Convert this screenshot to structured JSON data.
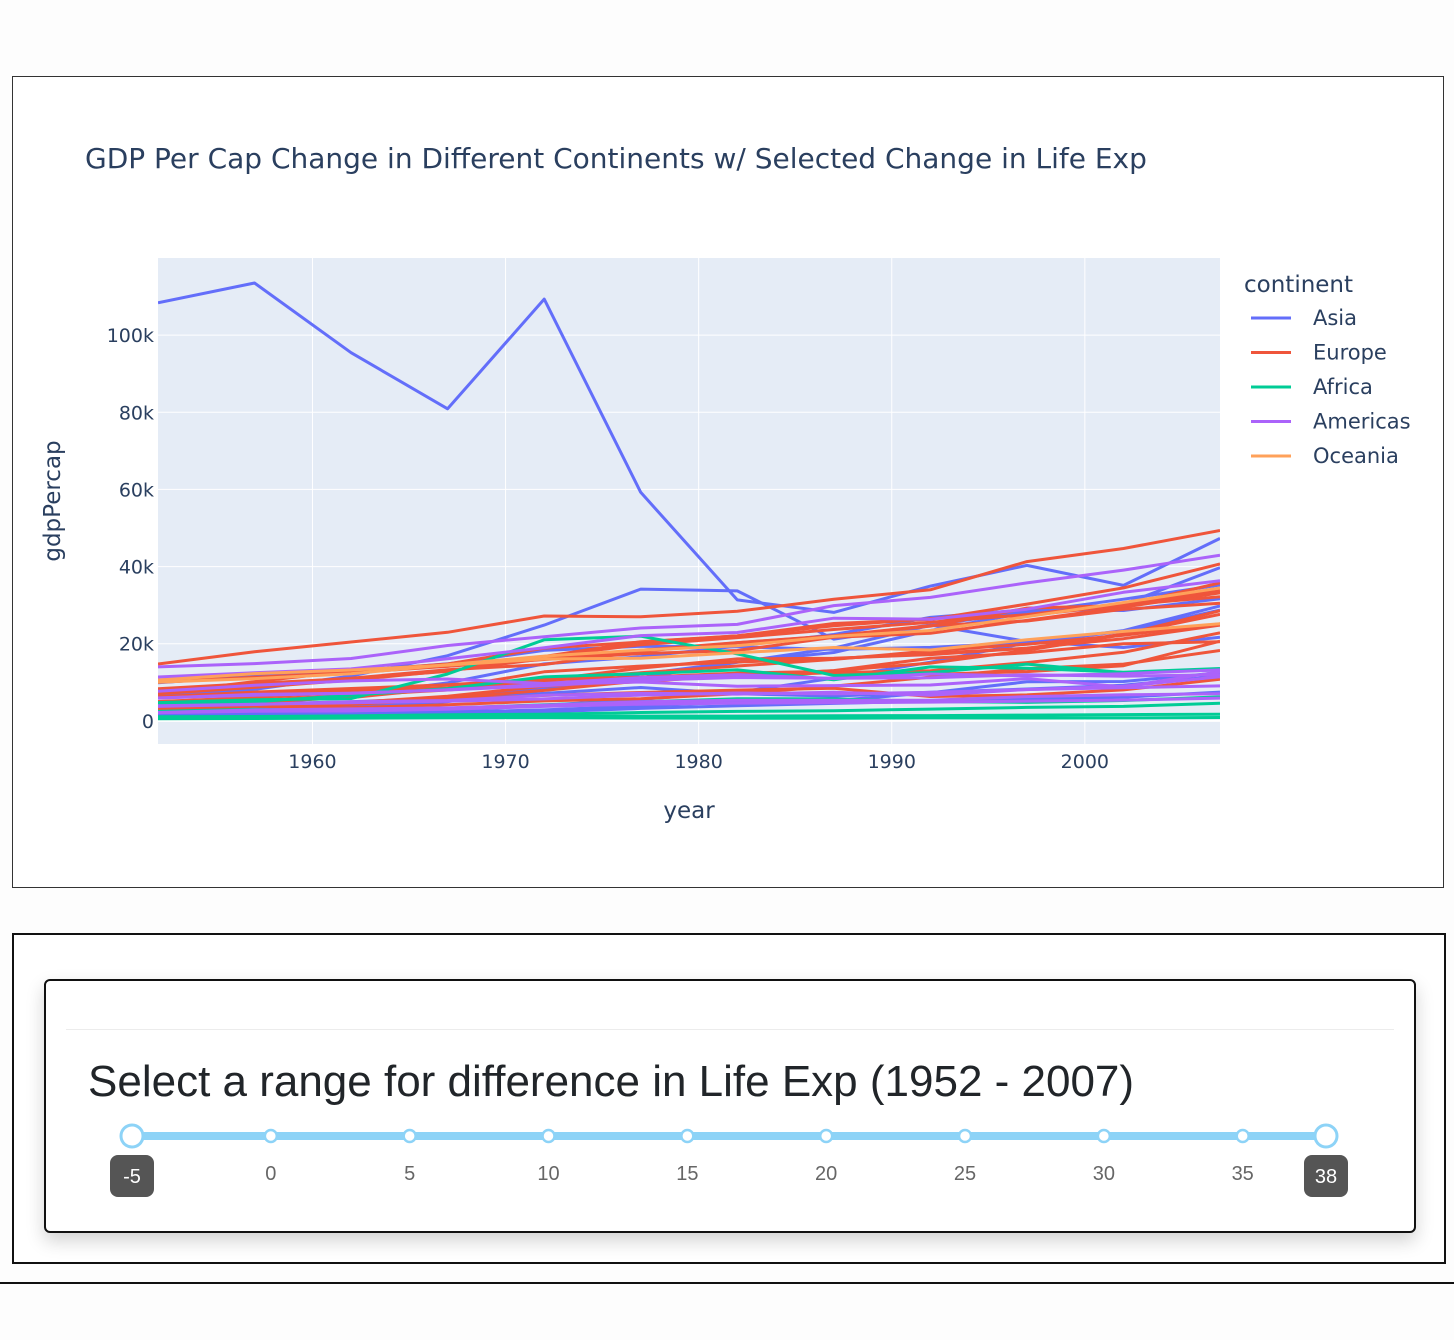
{
  "chart_data": {
    "type": "line",
    "title": "GDP Per Cap Change in Different Continents w/ Selected Change in Life Exp",
    "xlabel": "year",
    "ylabel": "gdpPercap",
    "xlim": [
      1952,
      2007
    ],
    "ylim": [
      -6000,
      120000
    ],
    "x_ticks": [
      1960,
      1970,
      1980,
      1990,
      2000
    ],
    "x_tick_labels": [
      "1960",
      "1970",
      "1980",
      "1990",
      "2000"
    ],
    "y_ticks": [
      0,
      20000,
      40000,
      60000,
      80000,
      100000
    ],
    "y_tick_labels": [
      "0",
      "20k",
      "40k",
      "60k",
      "80k",
      "100k"
    ],
    "grid": true,
    "legend_title": "continent",
    "legend_position": "right",
    "x": [
      1952,
      1957,
      1962,
      1967,
      1972,
      1977,
      1982,
      1987,
      1992,
      1997,
      2002,
      2007
    ],
    "series": [
      {
        "name": "Asia",
        "color": "#636efa",
        "lines": [
          [
            108382,
            113523,
            95458,
            80895,
            109348,
            59265,
            31354,
            28118,
            34933,
            40301,
            35110,
            47307
          ],
          [
            9867,
            11636,
            12753,
            14805,
            18269,
            19340,
            19211,
            18524,
            19036,
            20292,
            23404,
            29796
          ],
          [
            3054,
            4130,
            4692,
            6198,
            8316,
            12123,
            15269,
            17734,
            23423,
            28132,
            31541,
            35212
          ],
          [
            3217,
            4318,
            6577,
            9848,
            14779,
            16610,
            19384,
            22376,
            26825,
            28817,
            28605,
            31656
          ],
          [
            6459,
            8157,
            11627,
            16903,
            24837,
            34168,
            33694,
            21199,
            24842,
            20586,
            19014,
            21655
          ],
          [
            2315,
            2843,
            3675,
            4977,
            8597,
            11210,
            15169,
            18861,
            24769,
            28377,
            30209,
            39725
          ],
          [
            1207,
            1548,
            1824,
            2644,
            4062,
            5597,
            7426,
            11054,
            15215,
            20206,
            23235,
            28718
          ],
          [
            1831,
            1811,
            2037,
            2278,
            2849,
            3828,
            4920,
            5249,
            7278,
            10133,
            10207,
            12452
          ],
          [
            4130,
            4373,
            4957,
            5907,
            7106,
            8642,
            7006,
            6420,
            7404,
            8263,
            9241,
            11606
          ],
          [
            1573,
            1662,
            1675,
            2082,
            2317,
            3224,
            3934,
            4538,
            5108,
            5596,
            6145,
            7458
          ]
        ]
      },
      {
        "name": "Europe",
        "color": "#ef553b",
        "lines": [
          [
            14734,
            17909,
            20432,
            22966,
            27195,
            26982,
            28398,
            31541,
            33965,
            41283,
            44684,
            49357
          ],
          [
            10556,
            12247,
            13176,
            14173,
            16678,
            20512,
            22032,
            25240,
            26298,
            30281,
            34481,
            40676
          ],
          [
            9979,
            11283,
            12478,
            14143,
            15896,
            17429,
            18232,
            21665,
            22705,
            26075,
            29479,
            33203
          ],
          [
            8343,
            9715,
            10992,
            12835,
            16661,
            19750,
            21597,
            23688,
            25554,
            27561,
            30351,
            33692
          ],
          [
            7144,
            10188,
            12902,
            14746,
            18866,
            20423,
            22032,
            24639,
            26505,
            27289,
            30036,
            32170
          ],
          [
            7029,
            8662,
            10560,
            12999,
            16107,
            18293,
            20294,
            22066,
            24704,
            25890,
            28926,
            30470
          ],
          [
            6138,
            7001,
            7725,
            8600,
            10501,
            12461,
            14227,
            15934,
            18133,
            19877,
            22198,
            25143
          ],
          [
            3068,
            3774,
            4727,
            6362,
            9022,
            10172,
            11754,
            13039,
            16207,
            17641,
            19971,
            20510
          ],
          [
            3531,
            4917,
            6018,
            8513,
            12725,
            14195,
            15268,
            16120,
            17541,
            18747,
            22514,
            27602
          ],
          [
            6237,
            7458,
            8378,
            9336,
            10769,
            11305,
            12370,
            12887,
            12038,
            12767,
            14298,
            20649
          ],
          [
            4315,
            5338,
            6664,
            7990,
            9883,
            11024,
            11590,
            12521,
            12989,
            15112,
            17781,
            22833
          ],
          [
            2444,
            3009,
            4254,
            5578,
            6598,
            7346,
            7977,
            8448,
            6303,
            6732,
            8016,
            10809
          ],
          [
            5008,
            6044,
            7452,
            8597,
            10505,
            13670,
            16051,
            16233,
            17179,
            18861,
            21295,
            24813
          ],
          [
            3054,
            3781,
            4590,
            5907,
            7894,
            10351,
            11601,
            13016,
            14982,
            18282,
            22346,
            28570
          ],
          [
            2674,
            2828,
            3434,
            4163,
            5165,
            5735,
            7003,
            9019,
            11340,
            13541,
            14727,
            18233
          ],
          [
            7914,
            9443,
            11055,
            13270,
            14600,
            18009,
            20242,
            22010,
            24570,
            29242,
            29904,
            35795
          ]
        ]
      },
      {
        "name": "Africa",
        "color": "#00cc96",
        "lines": [
          [
            4725,
            5487,
            5768,
            12155,
            21011,
            21952,
            17364,
            11771,
            12521,
            14722,
            12522,
            13206
          ],
          [
            2449,
            3014,
            2551,
            3247,
            4183,
            4910,
            5745,
            5681,
            5023,
            4797,
            5288,
            6223
          ],
          [
            1063,
            1141,
            1293,
            1561,
            1713,
            2157,
            2452,
            2640,
            3054,
            3478,
            3760,
            4587
          ],
          [
            851,
            918,
            983,
            1136,
            1214,
            1221,
            1241,
            1334,
            1354,
            1486,
            1624,
            1712
          ],
          [
            543,
            617,
            722,
            795,
            855,
            744,
            700,
            701,
            760,
            745,
            759,
            863
          ],
          [
            4293,
            4976,
            6632,
            8359,
            11401,
            12219,
            13206,
            10632,
            13993,
            13659,
            12584,
            13569
          ]
        ]
      },
      {
        "name": "Americas",
        "color": "#ab63fa",
        "lines": [
          [
            13990,
            14847,
            16173,
            19530,
            21806,
            24073,
            25010,
            29884,
            32004,
            35767,
            39097,
            42952
          ],
          [
            11367,
            12490,
            13462,
            16077,
            18971,
            22091,
            22899,
            26627,
            26343,
            28954,
            33329,
            36319
          ],
          [
            5911,
            6857,
            7133,
            8053,
            9443,
            10079,
            8998,
            9140,
            9309,
            10967,
            8798,
            12779
          ],
          [
            7690,
            9213,
            10350,
            10839,
            9698,
            11205,
            12001,
            10945,
            12145,
            11626,
            12229,
            13216
          ],
          [
            3940,
            4282,
            4692,
            5101,
            5690,
            6679,
            7213,
            6976,
            7388,
            8093,
            8949,
            11415
          ],
          [
            2173,
            2837,
            3090,
            3349,
            4089,
            4971,
            5349,
            5351,
            5353,
            6300,
            6743,
            7007
          ],
          [
            5940,
            6631,
            7174,
            8012,
            9107,
            10501,
            11237,
            11034,
            11186,
            11960,
            11583,
            11977
          ],
          [
            2108,
            2487,
            2559,
            3014,
            3748,
            4310,
            4606,
            4686,
            4868,
            5125,
            5382,
            5907
          ],
          [
            3758,
            4245,
            4957,
            5281,
            6619,
            7133,
            6929,
            7408,
            6619,
            8137,
            8605,
            9065
          ]
        ]
      },
      {
        "name": "Oceania",
        "color": "#ffa15a",
        "lines": [
          [
            10040,
            10950,
            12217,
            14526,
            16789,
            18334,
            19477,
            21889,
            23425,
            26998,
            30688,
            34435
          ],
          [
            10557,
            12247,
            13176,
            14464,
            16046,
            16234,
            17633,
            19007,
            18363,
            21050,
            23190,
            25185
          ]
        ]
      }
    ]
  },
  "slider": {
    "heading": "Select a range for difference in Life Exp (1952 - 2007)",
    "min": -5,
    "max": 38,
    "selected_low": -5,
    "selected_high": 38,
    "low_label": "-5",
    "high_label": "38",
    "marks": [
      0,
      5,
      10,
      15,
      20,
      25,
      30,
      35
    ],
    "mark_labels": [
      "0",
      "5",
      "10",
      "15",
      "20",
      "25",
      "30",
      "35"
    ],
    "track_color": "#8dd3f7",
    "handle_color": "#8dd3f7",
    "tooltip_color": "#555555"
  }
}
